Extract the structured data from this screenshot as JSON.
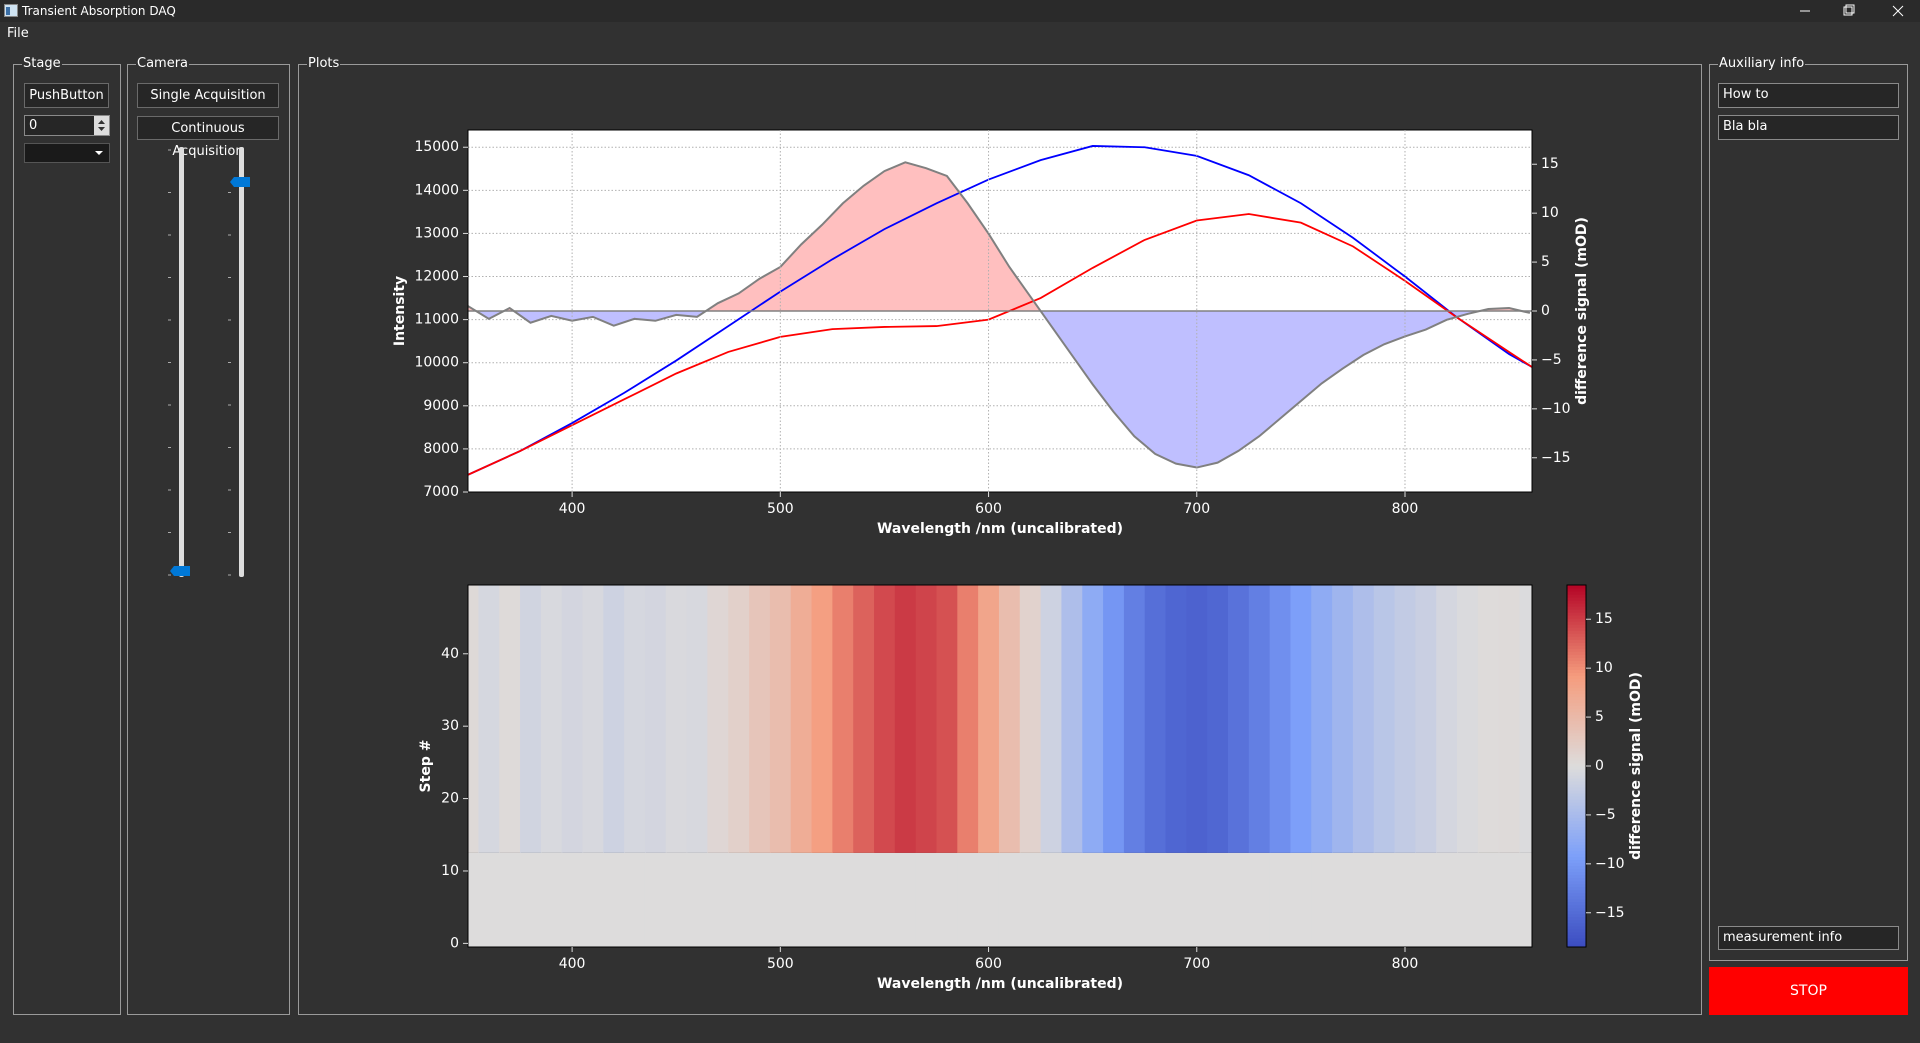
{
  "window": {
    "title": "Transient Absorption DAQ"
  },
  "menu": [
    "File"
  ],
  "stage": {
    "title": "Stage",
    "button": "PushButton",
    "spinbox": "0"
  },
  "camera": {
    "title": "Camera",
    "buttons": [
      "Single Acquisition",
      "Continuous Acquisition"
    ]
  },
  "plots": {
    "title": "Plots"
  },
  "aux": {
    "title": "Auxiliary info",
    "fields": [
      "How to",
      "Bla bla",
      "measurement info"
    ],
    "stop": "STOP"
  },
  "chart_data": [
    {
      "type": "line",
      "xlabel": "Wavelength /nm (uncalibrated)",
      "ylabel": "Intensity",
      "y2label": "difference signal (mOD)",
      "xlim": [
        350,
        861
      ],
      "xticks": [
        400,
        500,
        600,
        700,
        800
      ],
      "ylim": [
        7000,
        15400
      ],
      "yticks": [
        7000,
        8000,
        9000,
        10000,
        11000,
        12000,
        13000,
        14000,
        15000
      ],
      "y2lim": [
        -18.5,
        18.5
      ],
      "y2ticks": [
        {
          "value": -15,
          "label": "−15"
        },
        {
          "value": -10,
          "label": "−10"
        },
        {
          "value": -5,
          "label": "−5"
        },
        0,
        5,
        10,
        15
      ],
      "grid": true,
      "series": [
        {
          "color": "#0000ff",
          "x": [
            350,
            375,
            400,
            425,
            450,
            475,
            500,
            525,
            550,
            575,
            600,
            625,
            650,
            675,
            700,
            725,
            750,
            775,
            800,
            825,
            850,
            861
          ],
          "values": [
            7400,
            7950,
            8600,
            9300,
            10050,
            10850,
            11650,
            12400,
            13100,
            13700,
            14250,
            14700,
            15030,
            15000,
            14800,
            14350,
            13700,
            12900,
            12000,
            11050,
            10200,
            9900
          ]
        },
        {
          "color": "#ff0000",
          "x": [
            350,
            375,
            400,
            425,
            450,
            475,
            500,
            525,
            550,
            575,
            600,
            625,
            650,
            675,
            700,
            725,
            750,
            775,
            800,
            825,
            850,
            861
          ],
          "values": [
            7400,
            7950,
            8550,
            9150,
            9750,
            10250,
            10600,
            10780,
            10830,
            10850,
            11000,
            11500,
            12200,
            12850,
            13300,
            13450,
            13250,
            12700,
            11900,
            11050,
            10250,
            9900
          ]
        },
        {
          "color": "#808080",
          "axis": "y2",
          "fill_positive": "#ffbfbf",
          "fill_negative": "#bfbfff",
          "x": [
            350,
            360,
            370,
            380,
            390,
            400,
            410,
            420,
            430,
            440,
            450,
            460,
            470,
            480,
            490,
            500,
            510,
            520,
            530,
            540,
            550,
            560,
            570,
            580,
            590,
            600,
            610,
            620,
            630,
            640,
            650,
            660,
            670,
            680,
            690,
            700,
            710,
            720,
            730,
            740,
            750,
            760,
            770,
            780,
            790,
            800,
            810,
            820,
            830,
            840,
            850,
            860
          ],
          "values": [
            0.5,
            -0.8,
            0.3,
            -1.2,
            -0.5,
            -1.0,
            -0.6,
            -1.5,
            -0.8,
            -1.0,
            -0.4,
            -0.6,
            0.8,
            1.8,
            3.3,
            4.5,
            6.8,
            8.8,
            11.0,
            12.8,
            14.3,
            15.2,
            14.6,
            13.8,
            11.0,
            7.9,
            4.5,
            1.5,
            -1.5,
            -4.5,
            -7.5,
            -10.3,
            -12.8,
            -14.6,
            -15.6,
            -16.0,
            -15.5,
            -14.3,
            -12.8,
            -11.0,
            -9.2,
            -7.4,
            -5.9,
            -4.5,
            -3.4,
            -2.6,
            -1.9,
            -0.9,
            -0.3,
            0.2,
            0.3,
            -0.2
          ]
        }
      ]
    },
    {
      "type": "heatmap",
      "xlabel": "Wavelength /nm (uncalibrated)",
      "ylabel": "Step #",
      "colorbar_label": "difference signal (mOD)",
      "xlim": [
        350,
        861
      ],
      "xticks": [
        400,
        500,
        600,
        700,
        800
      ],
      "ylim": [
        -0.5,
        49.5
      ],
      "yticks": [
        0,
        10,
        20,
        30,
        40
      ],
      "x": [
        350,
        360,
        370,
        380,
        390,
        400,
        410,
        420,
        430,
        440,
        450,
        460,
        470,
        480,
        490,
        500,
        510,
        520,
        530,
        540,
        550,
        560,
        570,
        580,
        590,
        600,
        610,
        620,
        630,
        640,
        650,
        660,
        670,
        680,
        690,
        700,
        710,
        720,
        730,
        740,
        750,
        760,
        770,
        780,
        790,
        800,
        810,
        820,
        830,
        840,
        850,
        860
      ],
      "y_edges": [
        -0.5,
        12.5,
        49.5
      ],
      "z": [
        [
          0,
          0,
          0,
          0,
          0,
          0,
          0,
          0,
          0,
          0,
          0,
          0,
          0,
          0,
          0,
          0,
          0,
          0,
          0,
          0,
          0,
          0,
          0,
          0,
          0,
          0,
          0,
          0,
          0,
          0,
          0,
          0,
          0,
          0,
          0,
          0,
          0,
          0,
          0,
          0,
          0,
          0,
          0,
          0,
          0,
          0,
          0,
          0,
          0,
          0,
          0,
          0
        ],
        [
          0.5,
          -0.8,
          0.3,
          -1.2,
          -0.5,
          -1.0,
          -0.6,
          -1.5,
          -0.8,
          -1.0,
          -0.4,
          -0.6,
          0.8,
          1.8,
          3.3,
          4.5,
          6.8,
          8.8,
          11.0,
          12.8,
          14.3,
          15.2,
          14.6,
          13.8,
          11.0,
          7.9,
          4.5,
          1.5,
          -1.5,
          -4.5,
          -7.5,
          -10.3,
          -12.8,
          -14.6,
          -15.6,
          -16.0,
          -15.5,
          -14.3,
          -12.8,
          -11.0,
          -9.2,
          -7.4,
          -5.9,
          -4.5,
          -3.4,
          -2.6,
          -1.9,
          -0.9,
          -0.3,
          0.2,
          0.3,
          -0.2
        ]
      ],
      "colormap": "coolwarm",
      "clim": [
        -18.5,
        18.5
      ],
      "cticks": [
        {
          "value": -15,
          "label": "−15"
        },
        {
          "value": -10,
          "label": "−10"
        },
        {
          "value": -5,
          "label": "−5"
        },
        0,
        5,
        10,
        15
      ]
    }
  ]
}
